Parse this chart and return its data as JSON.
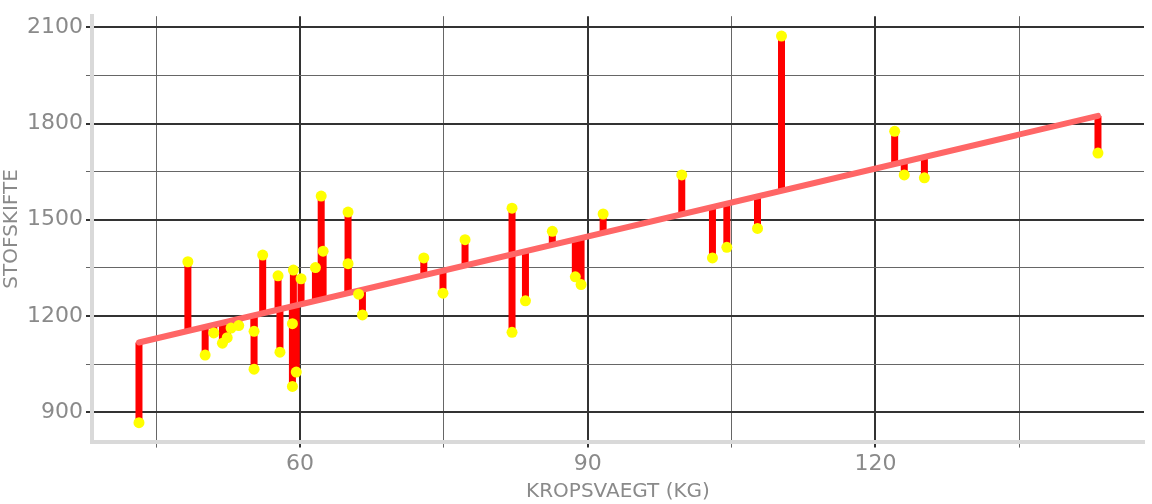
{
  "chart_data": {
    "type": "scatter",
    "xlabel": "KROPSVAEGT (KG)",
    "ylabel": "STOFSKIFTE",
    "xlim": [
      38.3,
      148
    ],
    "ylim": [
      808,
      2135
    ],
    "xticks": [
      {
        "value": 45,
        "label": null
      },
      60,
      {
        "value": 75,
        "label": null
      },
      90,
      {
        "value": 105,
        "label": null
      },
      120,
      {
        "value": 135,
        "label": null
      }
    ],
    "yticks": [
      900,
      {
        "value": 1050,
        "label": null
      },
      1200,
      {
        "value": 1350,
        "label": null
      },
      1500,
      {
        "value": 1650,
        "label": null
      },
      1800,
      {
        "value": 1950,
        "label": null
      },
      2100
    ],
    "grid": true,
    "legend": false,
    "marker": "circle",
    "series": [
      {
        "type": "scatter",
        "color": "#ffff00",
        "x": [
          43.2,
          48.3,
          50.1,
          51.0,
          51.9,
          52.4,
          52.8,
          53.6,
          55.2,
          55.2,
          56.1,
          57.7,
          57.9,
          59.3,
          59.2,
          59.2,
          59.6,
          60.1,
          61.6,
          62.2,
          62.4,
          65.0,
          65.0,
          66.1,
          66.5,
          72.9,
          74.9,
          77.2,
          82.1,
          82.1,
          83.5,
          86.3,
          88.7,
          89.3,
          91.6,
          99.8,
          103.0,
          104.5,
          107.7,
          110.2,
          122.0,
          123.0,
          125.1,
          143.2
        ],
        "values": [
          867,
          1369,
          1078,
          1147,
          1115,
          1132,
          1162,
          1170,
          1152,
          1034,
          1390,
          1325,
          1087,
          1343,
          1176,
          980,
          1025,
          1316,
          1351,
          1574,
          1402,
          1524,
          1363,
          1268,
          1203,
          1381,
          1271,
          1438,
          1536,
          1149,
          1247,
          1464,
          1322,
          1298,
          1518,
          1640,
          1381,
          1414,
          1473,
          2073,
          1776,
          1640,
          1631,
          1708
        ],
        "errors": [
          [
            867,
            1117
          ],
          [
            1153,
            1369
          ],
          [
            1078,
            1166
          ],
          [
            1147,
            1172
          ],
          [
            1115,
            1179
          ],
          [
            1132,
            1182
          ],
          [
            1162,
            1185
          ],
          [
            1170,
            1191
          ],
          [
            1152,
            1202
          ],
          [
            1034,
            1202
          ],
          [
            1208,
            1390
          ],
          [
            1220,
            1325
          ],
          [
            1087,
            1221
          ],
          [
            1231,
            1343
          ],
          [
            1176,
            1230
          ],
          [
            980,
            1230
          ],
          [
            1025,
            1233
          ],
          [
            1237,
            1316
          ],
          [
            1247,
            1351
          ],
          [
            1251,
            1574
          ],
          [
            1253,
            1402
          ],
          [
            1271,
            1524
          ],
          [
            1271,
            1363
          ],
          [
            1268,
            1279
          ],
          [
            1203,
            1282
          ],
          [
            1327,
            1381
          ],
          [
            1271,
            1341
          ],
          [
            1357,
            1438
          ],
          [
            1392,
            1536
          ],
          [
            1149,
            1392
          ],
          [
            1247,
            1402
          ],
          [
            1422,
            1464
          ],
          [
            1322,
            1439
          ],
          [
            1298,
            1443
          ],
          [
            1459,
            1518
          ],
          [
            1517,
            1640
          ],
          [
            1381,
            1540
          ],
          [
            1414,
            1550
          ],
          [
            1473,
            1573
          ],
          [
            1591,
            2073
          ],
          [
            1674,
            1776
          ],
          [
            1640,
            1681
          ],
          [
            1631,
            1696
          ],
          [
            1708,
            1824
          ]
        ]
      },
      {
        "type": "line",
        "color": "#ff6666",
        "x": [
          43.2,
          143.2
        ],
        "values": [
          1117,
          1824
        ],
        "marker": "none",
        "line_style": "solid"
      }
    ]
  }
}
